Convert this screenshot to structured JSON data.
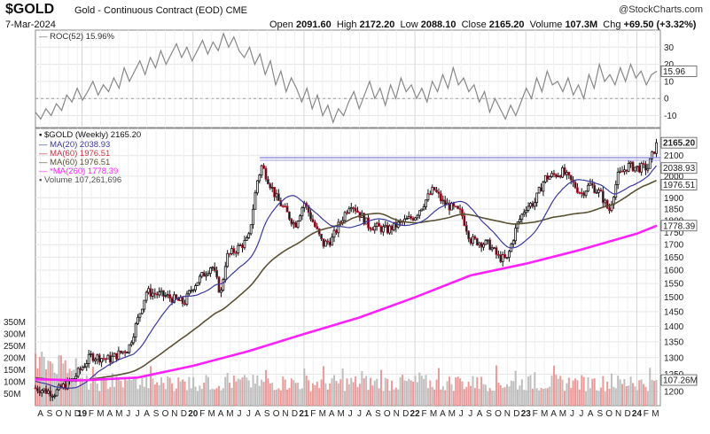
{
  "header": {
    "symbol": "$GOLD",
    "description": "Gold - Continuous Contract (EOD) CME",
    "credit": "@StockCharts.com",
    "date": "7-Mar-2024",
    "open_label": "Open",
    "open": "2091.60",
    "high_label": "High",
    "high": "2172.20",
    "low_label": "Low",
    "low": "2088.10",
    "close_label": "Close",
    "close": "2165.20",
    "volume_label": "Volume",
    "volume": "107.3M",
    "chg_label": "Chg",
    "chg": "+69.50 (+3.32%)"
  },
  "colors": {
    "price": "#111111",
    "ma20": "#3a3aa0",
    "ma60_red": "#d03040",
    "ma60": "#5a5234",
    "ma260": "#ff22ff",
    "volume": "#b4b4b4",
    "volume_up": "#e98a8a",
    "roc": "#888888",
    "resistance": "#8080e0"
  },
  "chart_data": [
    {
      "type": "line",
      "title": "ROC(52) 15.96%",
      "indicator": "ROC(52)",
      "last_value": 15.96,
      "last_value_label": "15.96",
      "ylim": [
        -17,
        40
      ],
      "yticks": [
        30,
        20,
        10,
        0,
        -10
      ],
      "x_start": 2018.58,
      "x_end": 2024.18,
      "values": [
        -8,
        -12,
        -6,
        -10,
        -3,
        -7,
        2,
        -2,
        6,
        -1,
        4,
        10,
        2,
        8,
        4,
        12,
        6,
        18,
        10,
        16,
        22,
        14,
        24,
        18,
        28,
        20,
        26,
        32,
        24,
        30,
        22,
        28,
        34,
        26,
        33,
        28,
        38,
        30,
        36,
        28,
        24,
        30,
        20,
        26,
        14,
        22,
        8,
        16,
        4,
        12,
        6,
        -2,
        6,
        -6,
        2,
        -10,
        -4,
        -14,
        -6,
        -10,
        -2,
        4,
        -6,
        2,
        10,
        0,
        6,
        -4,
        8,
        0,
        12,
        4,
        8,
        0,
        6,
        -2,
        10,
        4,
        14,
        6,
        18,
        8,
        12,
        4,
        8,
        -2,
        4,
        -8,
        0,
        -6,
        -12,
        -4,
        -10,
        -2,
        6,
        0,
        12,
        4,
        16,
        8,
        10,
        4,
        12,
        2,
        8,
        0,
        14,
        6,
        20,
        10,
        14,
        8,
        18,
        10,
        20,
        12,
        16,
        8,
        14,
        15.96
      ]
    },
    {
      "type": "candlestick",
      "title": "$GOLD (Weekly) 2165.20",
      "last_value": 2165.2,
      "last_value_label": "2165.20",
      "scale": "log",
      "ylim": [
        1160,
        2240
      ],
      "yticks": [
        2100,
        2000,
        1900,
        1850,
        1800,
        1750,
        1700,
        1650,
        1600,
        1550,
        1500,
        1450,
        1400,
        1350,
        1300,
        1250,
        1200
      ],
      "resistance_level": 2090,
      "x_start": 2018.58,
      "x_end": 2024.18,
      "close_anchors": [
        [
          2018.58,
          1210
        ],
        [
          2018.75,
          1195
        ],
        [
          2018.92,
          1235
        ],
        [
          2019.08,
          1305
        ],
        [
          2019.25,
          1295
        ],
        [
          2019.42,
          1330
        ],
        [
          2019.5,
          1420
        ],
        [
          2019.58,
          1520
        ],
        [
          2019.75,
          1505
        ],
        [
          2019.92,
          1480
        ],
        [
          2020.0,
          1540
        ],
        [
          2020.17,
          1620
        ],
        [
          2020.25,
          1510
        ],
        [
          2020.3,
          1650
        ],
        [
          2020.5,
          1720
        ],
        [
          2020.58,
          1980
        ],
        [
          2020.62,
          2050
        ],
        [
          2020.75,
          1900
        ],
        [
          2020.92,
          1780
        ],
        [
          2021.0,
          1880
        ],
        [
          2021.17,
          1700
        ],
        [
          2021.25,
          1720
        ],
        [
          2021.42,
          1880
        ],
        [
          2021.58,
          1780
        ],
        [
          2021.75,
          1760
        ],
        [
          2021.92,
          1800
        ],
        [
          2022.0,
          1820
        ],
        [
          2022.17,
          1940
        ],
        [
          2022.25,
          1880
        ],
        [
          2022.42,
          1830
        ],
        [
          2022.5,
          1720
        ],
        [
          2022.67,
          1700
        ],
        [
          2022.75,
          1650
        ],
        [
          2022.83,
          1640
        ],
        [
          2022.92,
          1780
        ],
        [
          2023.0,
          1860
        ],
        [
          2023.08,
          1880
        ],
        [
          2023.17,
          1990
        ],
        [
          2023.33,
          2020
        ],
        [
          2023.5,
          1920
        ],
        [
          2023.58,
          1960
        ],
        [
          2023.67,
          1920
        ],
        [
          2023.75,
          1840
        ],
        [
          2023.83,
          2000
        ],
        [
          2023.92,
          2050
        ],
        [
          2024.0,
          2040
        ],
        [
          2024.1,
          2040
        ],
        [
          2024.18,
          2165.2
        ]
      ]
    },
    {
      "type": "line",
      "title": "MA(20) 2038.93",
      "last_value": 2038.93,
      "last_value_label": "2038.93",
      "period": 20
    },
    {
      "type": "line",
      "title": "MA(60) 1976.51",
      "period": 60,
      "last_value": 1976.51,
      "last_value_label": "1976.51",
      "legend_entries": [
        "MA(60) 1976.51",
        "MA(60) 1976.51"
      ]
    },
    {
      "type": "line",
      "title": "*MA(260) 1778.39",
      "period": 260,
      "last_value": 1778.39,
      "last_value_label": "1778.39",
      "series_points": [
        [
          2018.58,
          1235
        ],
        [
          2019.0,
          1232
        ],
        [
          2019.5,
          1240
        ],
        [
          2020.0,
          1275
        ],
        [
          2020.5,
          1320
        ],
        [
          2021.0,
          1375
        ],
        [
          2021.5,
          1430
        ],
        [
          2022.0,
          1500
        ],
        [
          2022.5,
          1580
        ],
        [
          2023.0,
          1625
        ],
        [
          2023.5,
          1680
        ],
        [
          2024.0,
          1745
        ],
        [
          2024.18,
          1778.39
        ]
      ]
    },
    {
      "type": "bar",
      "title": "Volume 107,261,696",
      "last_value": 107261696,
      "last_value_label": "107.26M",
      "ylim": [
        0,
        400000000
      ],
      "yticks": [
        350000000,
        300000000,
        250000000,
        200000000,
        150000000,
        100000000,
        50000000
      ],
      "ytick_labels": [
        "350M",
        "300M",
        "250M",
        "200M",
        "150M",
        "100M",
        "50M"
      ]
    }
  ],
  "x_axis": {
    "ticks": [
      {
        "t": 2018.625,
        "label": "A"
      },
      {
        "t": 2018.708,
        "label": "S"
      },
      {
        "t": 2018.792,
        "label": "O"
      },
      {
        "t": 2018.875,
        "label": "N"
      },
      {
        "t": 2018.958,
        "label": "D"
      },
      {
        "t": 2019.0,
        "label": "19",
        "year": true
      },
      {
        "t": 2019.083,
        "label": "F"
      },
      {
        "t": 2019.167,
        "label": "M"
      },
      {
        "t": 2019.25,
        "label": "A"
      },
      {
        "t": 2019.333,
        "label": "M"
      },
      {
        "t": 2019.417,
        "label": "J"
      },
      {
        "t": 2019.5,
        "label": "J"
      },
      {
        "t": 2019.583,
        "label": "A"
      },
      {
        "t": 2019.667,
        "label": "S"
      },
      {
        "t": 2019.75,
        "label": "O"
      },
      {
        "t": 2019.833,
        "label": "N"
      },
      {
        "t": 2019.917,
        "label": "D"
      },
      {
        "t": 2020.0,
        "label": "20",
        "year": true
      },
      {
        "t": 2020.083,
        "label": "F"
      },
      {
        "t": 2020.167,
        "label": "M"
      },
      {
        "t": 2020.25,
        "label": "A"
      },
      {
        "t": 2020.333,
        "label": "M"
      },
      {
        "t": 2020.417,
        "label": "J"
      },
      {
        "t": 2020.5,
        "label": "J"
      },
      {
        "t": 2020.583,
        "label": "A"
      },
      {
        "t": 2020.667,
        "label": "S"
      },
      {
        "t": 2020.75,
        "label": "O"
      },
      {
        "t": 2020.833,
        "label": "N"
      },
      {
        "t": 2020.917,
        "label": "D"
      },
      {
        "t": 2021.0,
        "label": "21",
        "year": true
      },
      {
        "t": 2021.083,
        "label": "F"
      },
      {
        "t": 2021.167,
        "label": "M"
      },
      {
        "t": 2021.25,
        "label": "A"
      },
      {
        "t": 2021.333,
        "label": "M"
      },
      {
        "t": 2021.417,
        "label": "J"
      },
      {
        "t": 2021.5,
        "label": "J"
      },
      {
        "t": 2021.583,
        "label": "A"
      },
      {
        "t": 2021.667,
        "label": "S"
      },
      {
        "t": 2021.75,
        "label": "O"
      },
      {
        "t": 2021.833,
        "label": "N"
      },
      {
        "t": 2021.917,
        "label": "D"
      },
      {
        "t": 2022.0,
        "label": "22",
        "year": true
      },
      {
        "t": 2022.083,
        "label": "F"
      },
      {
        "t": 2022.167,
        "label": "M"
      },
      {
        "t": 2022.25,
        "label": "A"
      },
      {
        "t": 2022.333,
        "label": "M"
      },
      {
        "t": 2022.417,
        "label": "J"
      },
      {
        "t": 2022.5,
        "label": "J"
      },
      {
        "t": 2022.583,
        "label": "A"
      },
      {
        "t": 2022.667,
        "label": "S"
      },
      {
        "t": 2022.75,
        "label": "O"
      },
      {
        "t": 2022.833,
        "label": "N"
      },
      {
        "t": 2022.917,
        "label": "D"
      },
      {
        "t": 2023.0,
        "label": "23",
        "year": true
      },
      {
        "t": 2023.083,
        "label": "F"
      },
      {
        "t": 2023.167,
        "label": "M"
      },
      {
        "t": 2023.25,
        "label": "A"
      },
      {
        "t": 2023.333,
        "label": "M"
      },
      {
        "t": 2023.417,
        "label": "J"
      },
      {
        "t": 2023.5,
        "label": "J"
      },
      {
        "t": 2023.583,
        "label": "A"
      },
      {
        "t": 2023.667,
        "label": "S"
      },
      {
        "t": 2023.75,
        "label": "O"
      },
      {
        "t": 2023.833,
        "label": "N"
      },
      {
        "t": 2023.917,
        "label": "D"
      },
      {
        "t": 2024.0,
        "label": "24",
        "year": true
      },
      {
        "t": 2024.083,
        "label": "F"
      },
      {
        "t": 2024.167,
        "label": "M"
      }
    ]
  }
}
